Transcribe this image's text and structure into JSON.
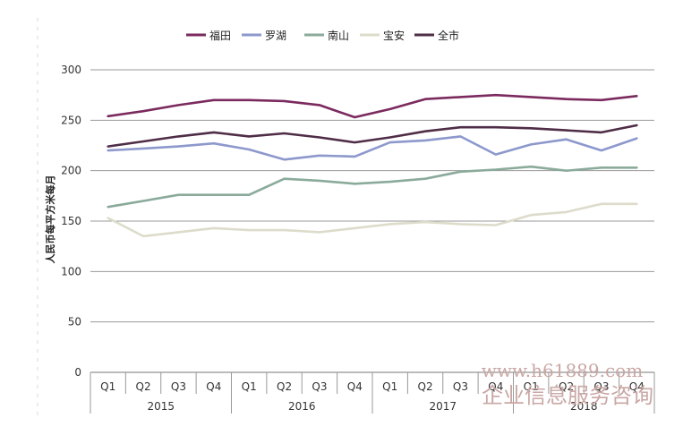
{
  "chart_data": {
    "type": "line",
    "title": "",
    "xlabel": "",
    "ylabel": "人民币每平方米每月",
    "ylim": [
      0,
      300
    ],
    "yticks": [
      0,
      50,
      100,
      150,
      200,
      250,
      300
    ],
    "categories": [
      "Q1",
      "Q2",
      "Q3",
      "Q4",
      "Q1",
      "Q2",
      "Q3",
      "Q4",
      "Q1",
      "Q2",
      "Q3",
      "Q4",
      "Q1",
      "Q2",
      "Q3",
      "Q4"
    ],
    "years": [
      "2015",
      "2016",
      "2017",
      "2018"
    ],
    "series": [
      {
        "name": "福田",
        "color": "#7b2a5e",
        "values": [
          254,
          259,
          265,
          270,
          270,
          269,
          265,
          253,
          261,
          271,
          273,
          275,
          273,
          271,
          270,
          274
        ]
      },
      {
        "name": "罗湖",
        "color": "#8d98cc",
        "values": [
          220,
          222,
          224,
          227,
          221,
          211,
          215,
          214,
          228,
          230,
          234,
          216,
          226,
          231,
          220,
          232
        ]
      },
      {
        "name": "南山",
        "color": "#8aaa9a",
        "values": [
          164,
          170,
          176,
          176,
          176,
          192,
          190,
          187,
          189,
          192,
          199,
          201,
          204,
          200,
          203,
          203
        ]
      },
      {
        "name": "宝安",
        "color": "#dddccb",
        "values": [
          153,
          135,
          139,
          143,
          141,
          141,
          139,
          143,
          147,
          149,
          147,
          146,
          156,
          159,
          167,
          167
        ]
      },
      {
        "name": "全市",
        "color": "#4f2d47",
        "values": [
          224,
          229,
          234,
          238,
          234,
          237,
          233,
          228,
          233,
          239,
          243,
          243,
          242,
          240,
          238,
          245
        ]
      }
    ]
  },
  "watermark": {
    "url": "www.h61889.com",
    "text": "企业信息服务咨询"
  }
}
